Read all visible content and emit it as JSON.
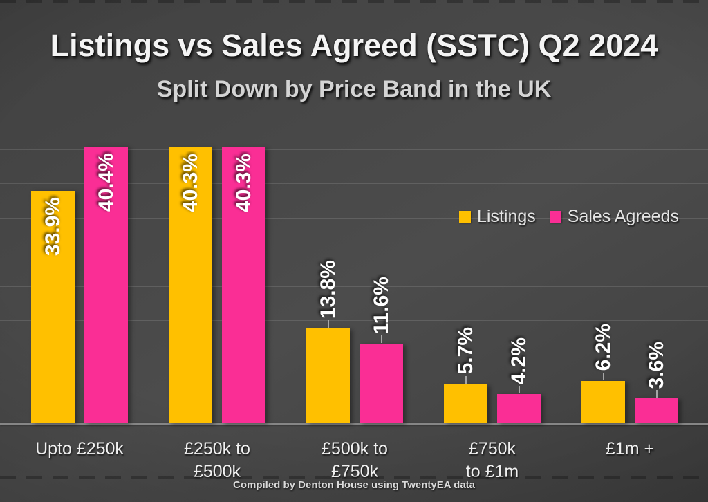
{
  "slide": {
    "title": "Listings vs Sales Agreed (SSTC) Q2 2024",
    "subtitle": "Split Down by Price Band in the UK",
    "footer": "Compiled by Denton House using TwentyEA data"
  },
  "colors": {
    "listings": "#FFC000",
    "sales_agreeds": "#FA2E95",
    "background": "#454545",
    "gridline": "rgba(255,255,255,0.12)",
    "value_label": "#FFFFFF"
  },
  "legend": {
    "items": [
      {
        "label": "Listings",
        "color": "#FFC000"
      },
      {
        "label": "Sales Agreeds",
        "color": "#FA2E95"
      }
    ]
  },
  "chart_data": {
    "type": "bar",
    "title": "Listings vs Sales Agreed (SSTC) Q2 2024",
    "subtitle": "Split Down by Price Band in the UK",
    "categories": [
      [
        "Upto £250k"
      ],
      [
        "£250k to",
        "£500k"
      ],
      [
        "£500k to",
        "£750k"
      ],
      [
        "£750k",
        "to £1m"
      ],
      [
        "£1m +"
      ]
    ],
    "series": [
      {
        "name": "Listings",
        "color": "#FFC000",
        "values": [
          33.9,
          40.3,
          13.8,
          5.7,
          6.2
        ]
      },
      {
        "name": "Sales Agreeds",
        "color": "#FA2E95",
        "values": [
          40.4,
          40.3,
          11.6,
          4.2,
          3.6
        ]
      }
    ],
    "value_suffix": "%",
    "value_decimals": 1,
    "ylim": [
      0,
      45
    ],
    "gridline_step": 5,
    "grid": true,
    "legend_position": "right-middle",
    "value_label_style": "rotated-90-bold-white",
    "label_inside_threshold": 20,
    "xlabel": "",
    "ylabel": ""
  }
}
